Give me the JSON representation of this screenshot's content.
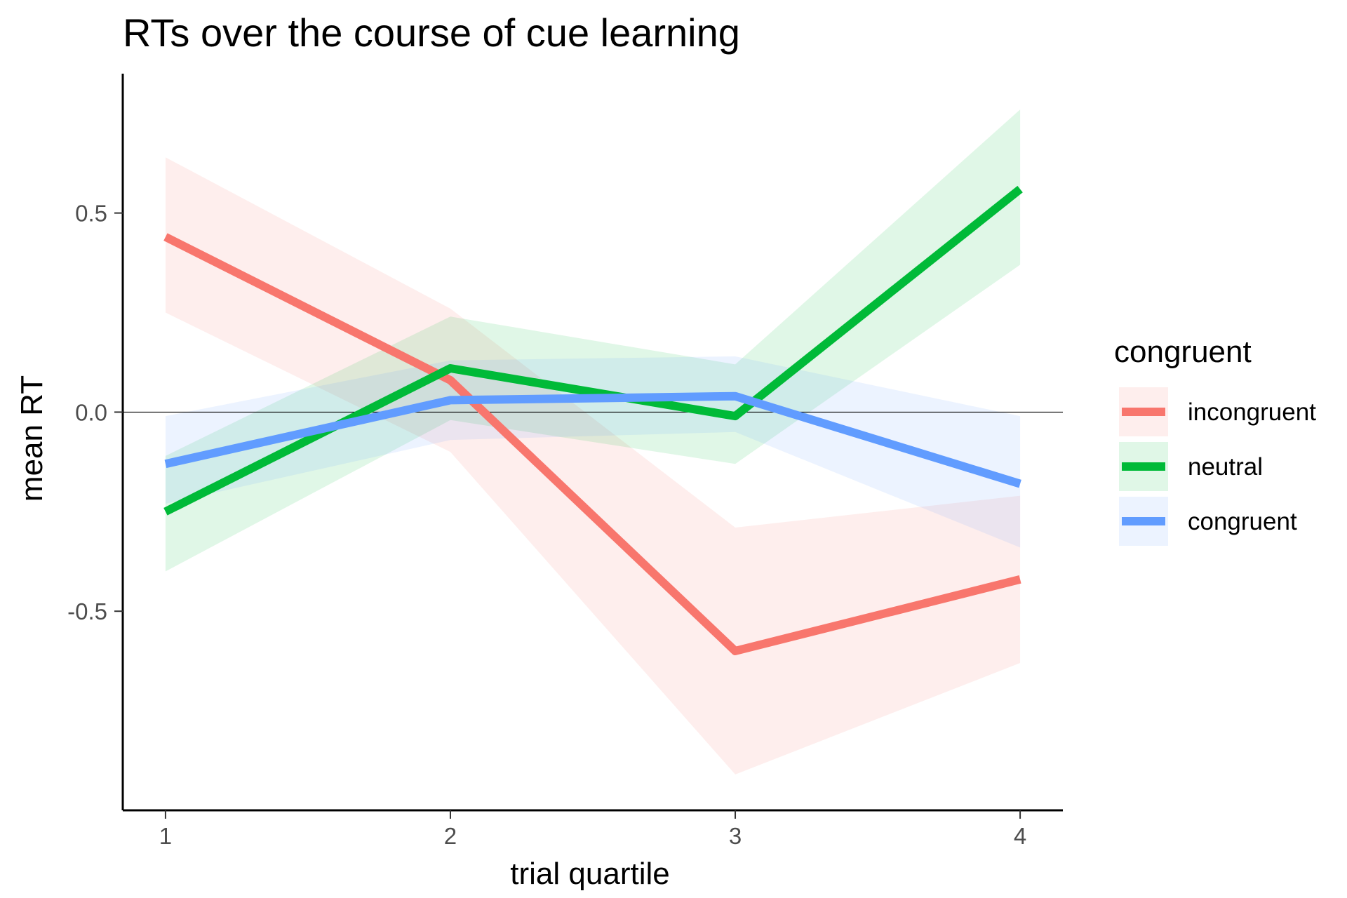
{
  "chart_data": {
    "type": "line",
    "title": "RTs over the course of cue learning",
    "xlabel": "trial quartile",
    "ylabel": "mean RT",
    "x": [
      1,
      2,
      3,
      4
    ],
    "x_tick_labels": [
      "1",
      "2",
      "3",
      "4"
    ],
    "xlim": [
      0.85,
      4.15
    ],
    "y_ticks": [
      -0.5,
      0.0,
      0.5
    ],
    "y_tick_labels": [
      "-0.5",
      "0.0",
      "0.5"
    ],
    "ylim": [
      -1.0,
      0.85
    ],
    "reference_line_y": 0,
    "grid": false,
    "legend": {
      "title": "congruent",
      "position": "right"
    },
    "series": [
      {
        "name": "incongruent",
        "color": "#F8766D",
        "values": [
          0.44,
          0.08,
          -0.6,
          -0.42
        ],
        "lower": [
          0.25,
          -0.1,
          -0.91,
          -0.63
        ],
        "upper": [
          0.64,
          0.26,
          -0.29,
          -0.21
        ]
      },
      {
        "name": "neutral",
        "color": "#00BA38",
        "values": [
          -0.25,
          0.11,
          -0.01,
          0.56
        ],
        "lower": [
          -0.4,
          -0.02,
          -0.13,
          0.37
        ],
        "upper": [
          -0.11,
          0.24,
          0.12,
          0.76
        ]
      },
      {
        "name": "congruent",
        "color": "#619CFF",
        "values": [
          -0.13,
          0.03,
          0.04,
          -0.18
        ],
        "lower": [
          -0.23,
          -0.07,
          -0.05,
          -0.34
        ],
        "upper": [
          -0.01,
          0.13,
          0.14,
          -0.01
        ]
      }
    ]
  }
}
